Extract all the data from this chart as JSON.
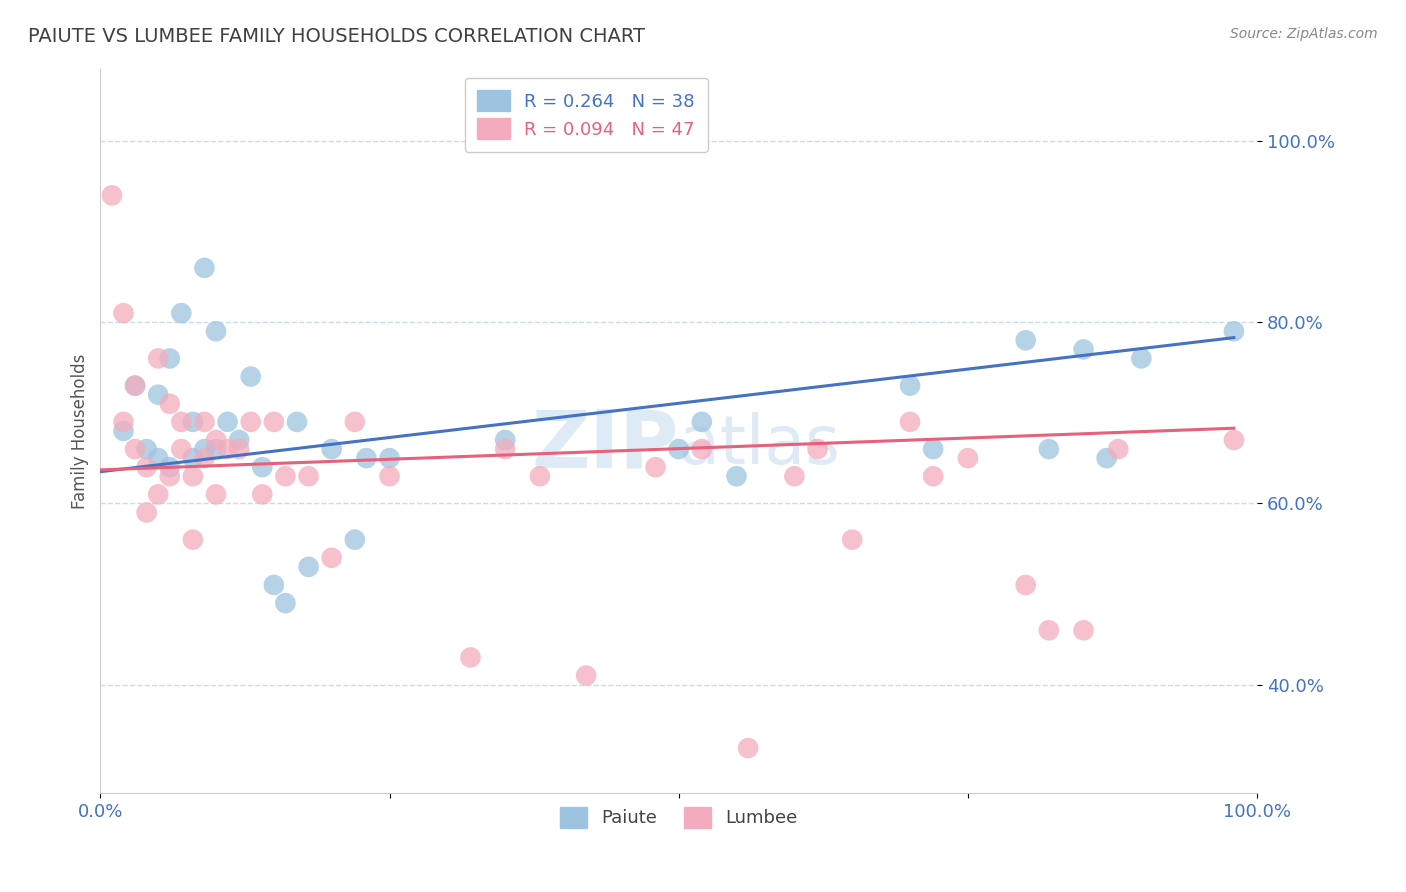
{
  "title": "PAIUTE VS LUMBEE FAMILY HOUSEHOLDS CORRELATION CHART",
  "source": "Source: ZipAtlas.com",
  "ylabel": "Family Households",
  "xlim": [
    0.0,
    1.0
  ],
  "ylim": [
    0.28,
    1.08
  ],
  "yticks": [
    0.4,
    0.6,
    0.8,
    1.0
  ],
  "ytick_labels": [
    "40.0%",
    "60.0%",
    "80.0%",
    "100.0%"
  ],
  "xticks": [
    0.0,
    0.25,
    0.5,
    0.75,
    1.0
  ],
  "xtick_labels": [
    "0.0%",
    "",
    "",
    "",
    "100.0%"
  ],
  "paiute_R": 0.264,
  "paiute_N": 38,
  "lumbee_R": 0.094,
  "lumbee_N": 47,
  "paiute_color": "#9DC3E0",
  "lumbee_color": "#F4ABBD",
  "paiute_line_color": "#4472C4",
  "lumbee_line_color": "#E8607A",
  "legend_paiute_label": "Paiute",
  "legend_lumbee_label": "Lumbee",
  "title_color": "#404040",
  "axis_tick_color": "#4472C4",
  "watermark_color": "#C8DCF0",
  "paiute_x": [
    0.02,
    0.03,
    0.04,
    0.05,
    0.05,
    0.06,
    0.06,
    0.07,
    0.08,
    0.08,
    0.09,
    0.09,
    0.1,
    0.1,
    0.11,
    0.12,
    0.13,
    0.14,
    0.15,
    0.16,
    0.17,
    0.18,
    0.2,
    0.22,
    0.23,
    0.25,
    0.35,
    0.5,
    0.52,
    0.55,
    0.7,
    0.72,
    0.8,
    0.82,
    0.85,
    0.87,
    0.9,
    0.98
  ],
  "paiute_y": [
    0.68,
    0.73,
    0.66,
    0.72,
    0.65,
    0.76,
    0.64,
    0.81,
    0.69,
    0.65,
    0.86,
    0.66,
    0.66,
    0.79,
    0.69,
    0.67,
    0.74,
    0.64,
    0.51,
    0.49,
    0.69,
    0.53,
    0.66,
    0.56,
    0.65,
    0.65,
    0.67,
    0.66,
    0.69,
    0.63,
    0.73,
    0.66,
    0.78,
    0.66,
    0.77,
    0.65,
    0.76,
    0.79
  ],
  "lumbee_x": [
    0.01,
    0.02,
    0.02,
    0.03,
    0.03,
    0.04,
    0.04,
    0.05,
    0.05,
    0.06,
    0.06,
    0.07,
    0.07,
    0.08,
    0.08,
    0.09,
    0.09,
    0.1,
    0.1,
    0.11,
    0.12,
    0.13,
    0.14,
    0.15,
    0.16,
    0.18,
    0.2,
    0.22,
    0.25,
    0.32,
    0.35,
    0.38,
    0.42,
    0.48,
    0.52,
    0.56,
    0.6,
    0.62,
    0.65,
    0.7,
    0.72,
    0.75,
    0.8,
    0.82,
    0.85,
    0.88,
    0.98
  ],
  "lumbee_y": [
    0.94,
    0.81,
    0.69,
    0.73,
    0.66,
    0.64,
    0.59,
    0.76,
    0.61,
    0.63,
    0.71,
    0.66,
    0.69,
    0.56,
    0.63,
    0.65,
    0.69,
    0.61,
    0.67,
    0.66,
    0.66,
    0.69,
    0.61,
    0.69,
    0.63,
    0.63,
    0.54,
    0.69,
    0.63,
    0.43,
    0.66,
    0.63,
    0.41,
    0.64,
    0.66,
    0.33,
    0.63,
    0.66,
    0.56,
    0.69,
    0.63,
    0.65,
    0.51,
    0.46,
    0.46,
    0.66,
    0.67
  ],
  "paiute_line_x": [
    0.0,
    0.98
  ],
  "paiute_line_y": [
    0.635,
    0.783
  ],
  "lumbee_line_x": [
    0.0,
    0.98
  ],
  "lumbee_line_y": [
    0.637,
    0.683
  ]
}
